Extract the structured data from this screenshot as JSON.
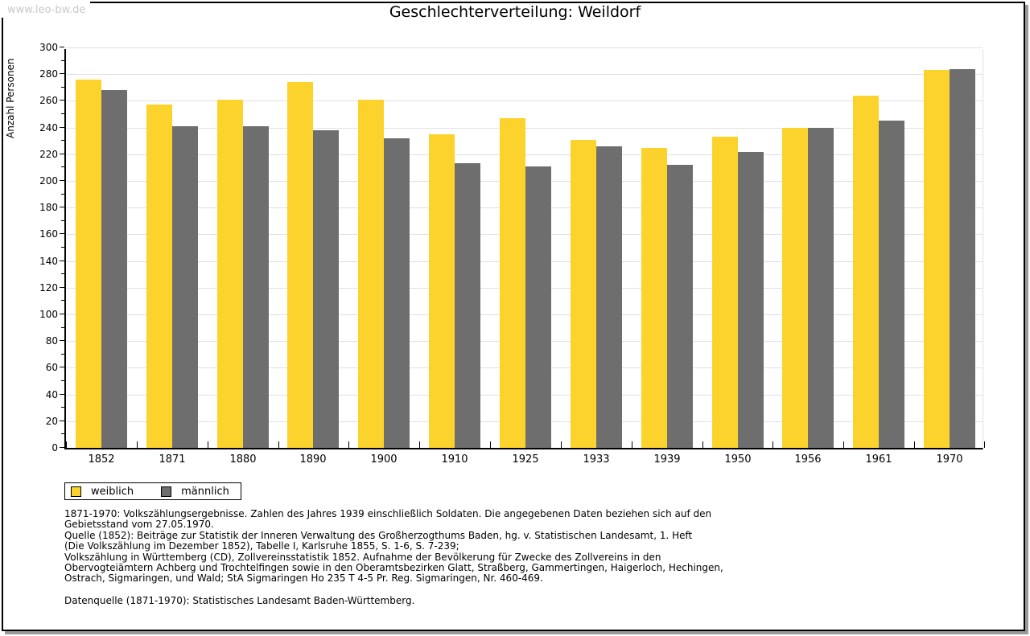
{
  "watermark": "www.leo-bw.de",
  "header": {
    "title": "Geschlechterverteilung: Weildorf"
  },
  "chart_data": {
    "type": "bar",
    "title": "Geschlechterverteilung: Weildorf",
    "xlabel": "",
    "ylabel": "Anzahl Personen",
    "ylim": [
      0,
      300
    ],
    "ytick_step": 20,
    "minor_tick_step": 10,
    "grid": true,
    "legend_position": "bottom-left",
    "categories": [
      "1852",
      "1871",
      "1880",
      "1890",
      "1900",
      "1910",
      "1925",
      "1933",
      "1939",
      "1950",
      "1956",
      "1961",
      "1970"
    ],
    "series": [
      {
        "name": "weiblich",
        "color": "#fcd32d",
        "values": [
          276,
          257,
          261,
          274,
          261,
          235,
          247,
          231,
          225,
          233,
          240,
          264,
          283
        ]
      },
      {
        "name": "männlich",
        "color": "#6e6e6e",
        "values": [
          268,
          241,
          241,
          238,
          232,
          213,
          211,
          226,
          212,
          222,
          240,
          245,
          284
        ]
      }
    ]
  },
  "colors": {
    "female_bar": "#fcd32d",
    "male_bar": "#6e6e6e",
    "gridline": "#e0e0e0",
    "axis": "#000000",
    "watermark": "#c9c9c9",
    "frame_shadow": "#9a9a9a"
  },
  "footnote": {
    "lines": [
      "1871-1970: Volkszählungsergebnisse. Zahlen des Jahres 1939 einschließlich Soldaten. Die angegebenen Daten beziehen sich auf den",
      "Gebietsstand vom 27.05.1970.",
      "Quelle (1852): Beiträge zur Statistik der Inneren Verwaltung des Großherzogthums Baden, hg. v. Statistischen Landesamt, 1. Heft",
      "(Die Volkszählung im Dezember 1852), Tabelle I, Karlsruhe 1855, S. 1-6, S. 7-239;",
      "Volkszählung in Württemberg (CD), Zollvereinsstatistik 1852. Aufnahme der Bevölkerung für Zwecke des Zollvereins in den",
      "Obervogteiämtern Achberg und Trochtelfingen sowie in den Oberamtsbezirken Glatt, Straßberg, Gammertingen, Haigerloch, Hechingen,",
      "Ostrach, Sigmaringen, und Wald; StA Sigmaringen Ho 235 T 4-5 Pr. Reg. Sigmaringen, Nr. 460-469."
    ],
    "datasource": "Datenquelle (1871-1970): Statistisches Landesamt Baden-Württemberg."
  }
}
